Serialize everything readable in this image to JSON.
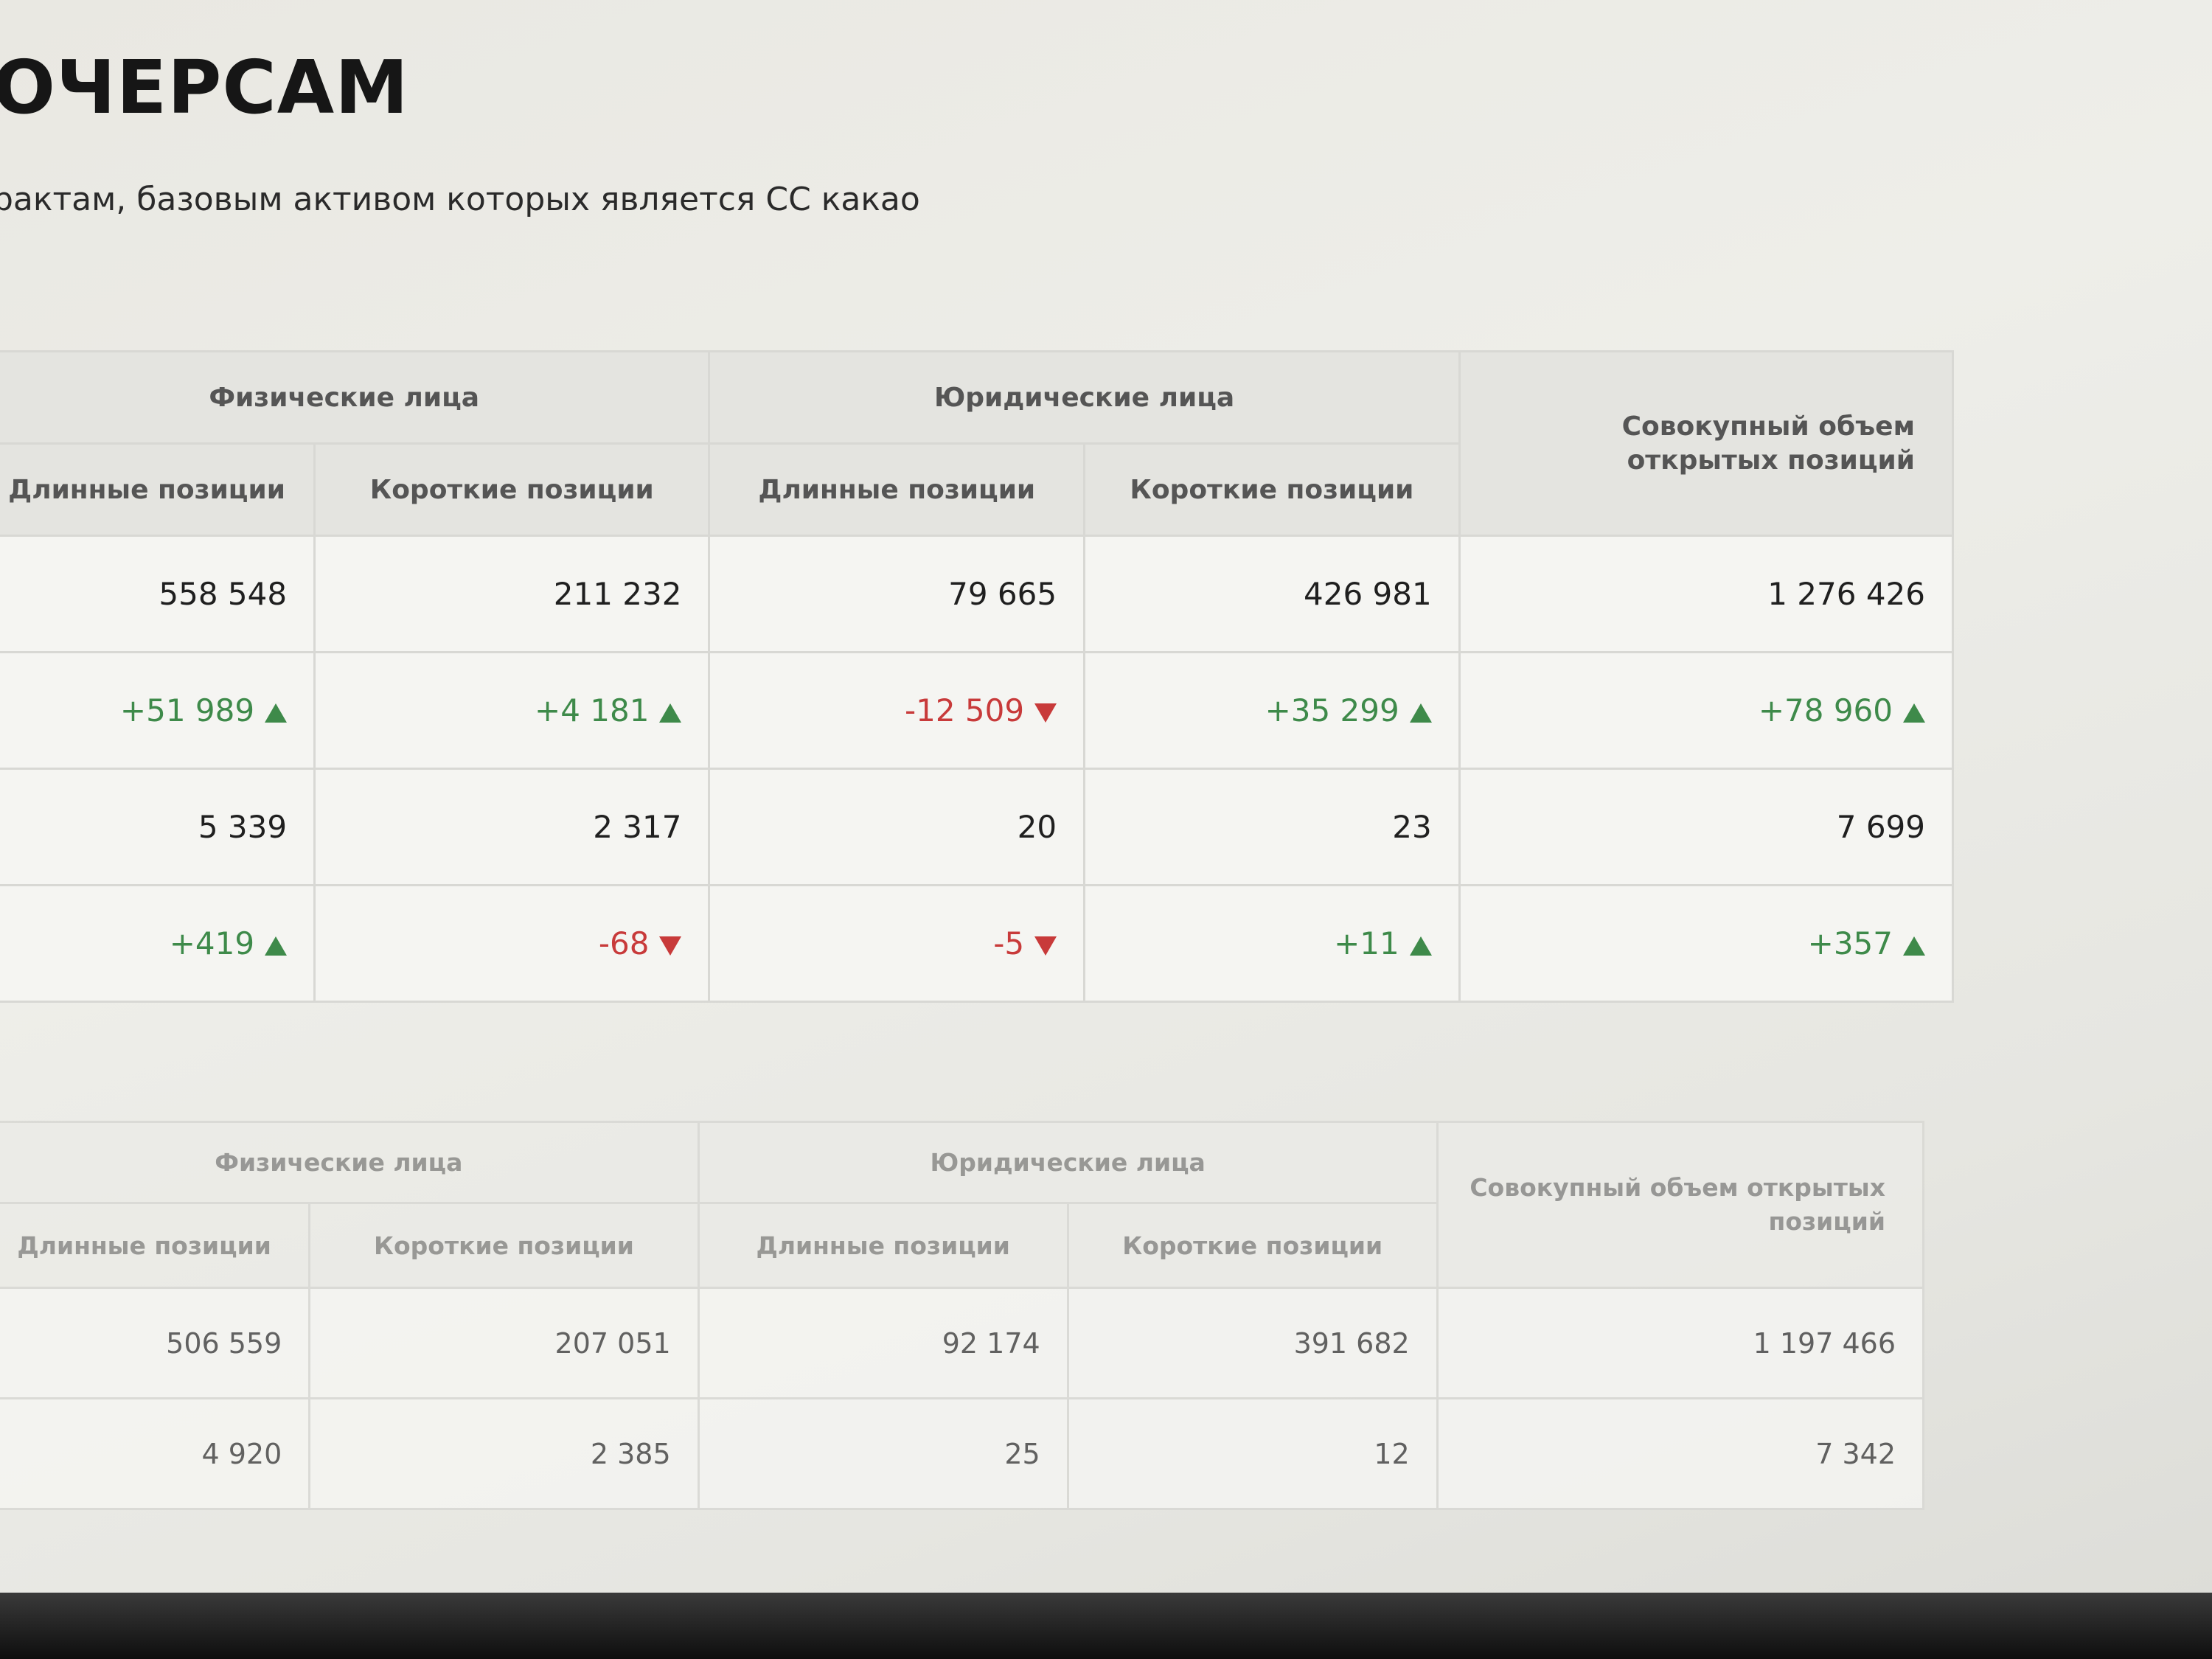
{
  "header": {
    "title": "ОЧЕРСАМ",
    "subtitle": "рактам, базовым активом которых является CC какао"
  },
  "tables": [
    {
      "groups": [
        "Физические лица",
        "Юридические лица"
      ],
      "total_header": "Совокупный объем открытых позиций",
      "columns": [
        "Длинные позиции",
        "Короткие позиции",
        "Длинные позиции",
        "Короткие позиции"
      ],
      "rows": [
        [
          "558 548",
          "211 232",
          "79 665",
          "426 981",
          "1 276 426"
        ],
        [
          "+51 989",
          "+4 181",
          "-12 509",
          "+35 299",
          "+78 960"
        ],
        [
          "5 339",
          "2 317",
          "20",
          "23",
          "7 699"
        ],
        [
          "+419",
          "-68",
          "-5",
          "+11",
          "+357"
        ]
      ]
    },
    {
      "groups": [
        "Физические лица",
        "Юридические лица"
      ],
      "total_header": "Совокупный объем открытых позиций",
      "columns": [
        "Длинные позиции",
        "Короткие позиции",
        "Длинные позиции",
        "Короткие позиции"
      ],
      "rows": [
        [
          "506 559",
          "207 051",
          "92 174",
          "391 682",
          "1 197 466"
        ],
        [
          "4 920",
          "2 385",
          "25",
          "12",
          "7 342"
        ]
      ]
    }
  ]
}
